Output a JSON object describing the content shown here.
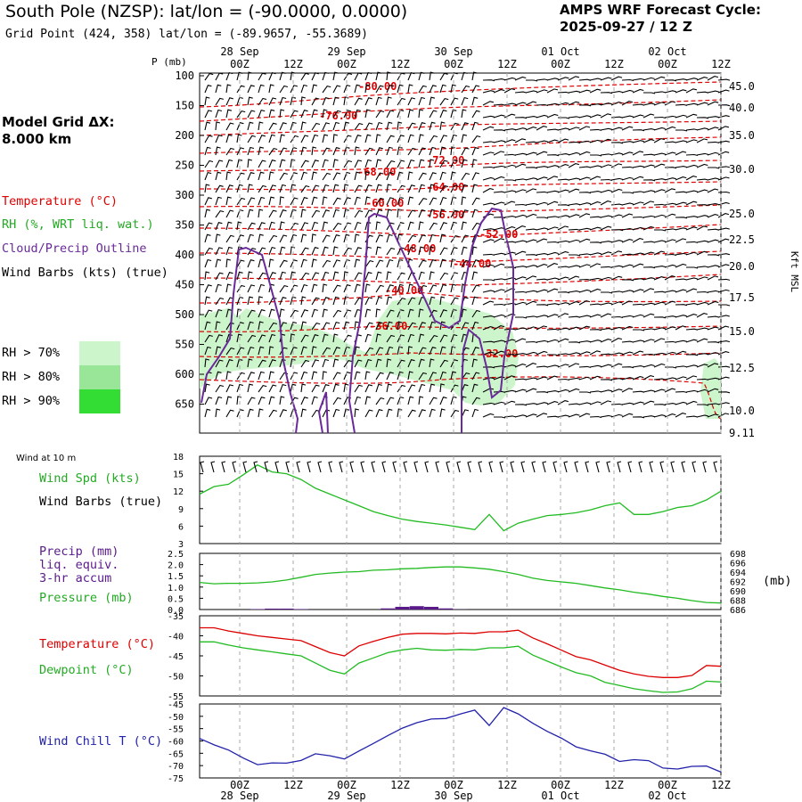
{
  "header": {
    "title": "South Pole (NZSP):  lat/lon = (-90.0000, 0.0000)",
    "subtitle": "Grid Point (424, 358) lat/lon = (-89.9657, -55.3689)",
    "cycle_line1": "AMPS WRF Forecast Cycle:",
    "cycle_line2": "2025-09-27 / 12  Z"
  },
  "model_grid": {
    "line1": "Model Grid ΔX:",
    "line2": " 8.000 km"
  },
  "time_axis": {
    "ticks": [
      "00Z",
      "12Z",
      "00Z",
      "12Z",
      "00Z",
      "12Z",
      "00Z",
      "12Z",
      "00Z",
      "12Z"
    ],
    "dates": [
      "28 Sep",
      "29 Sep",
      "30 Sep",
      "01 Oct",
      "02 Oct"
    ]
  },
  "legend": {
    "temperature": "Temperature (°C)",
    "rh": "RH (%, WRT liq. wat.)",
    "cloud": "Cloud/Precip Outline",
    "wind": "Wind Barbs (kts) (true)",
    "rh70": "RH > 70%",
    "rh80": "RH > 80%",
    "rh90": "RH > 90%",
    "colors": {
      "rh70": "#ccf5cc",
      "rh80": "#99e699",
      "rh90": "#33dd33",
      "temp": "#dd0000",
      "cloud": "#6a2a9a"
    }
  },
  "chart_data": [
    {
      "type": "heatmap",
      "name": "upper-air cross section",
      "ylabel_left": "P (mb)",
      "ylabel_right": "Kft MSL",
      "p_ticks": [
        "100",
        "150",
        "200",
        "250",
        "300",
        "350",
        "400",
        "450",
        "500",
        "550",
        "600",
        "650"
      ],
      "kft_ticks": [
        "45.0",
        "40.0",
        "35.0",
        "30.0",
        "25.0",
        "22.5",
        "20.0",
        "17.5",
        "15.0",
        "12.5",
        "10.0",
        "9.11"
      ],
      "temp_labels": [
        "-80.00",
        "-76.00",
        "-72.00",
        "-68.00",
        "-64.00",
        "-60.00",
        "-56.00",
        "-52.00",
        "-48.00",
        "-44.00",
        "-40.00",
        "-36.00",
        "-32.00"
      ]
    },
    {
      "type": "line",
      "name": "wind at 10 m",
      "panel_title": "Wind at 10 m",
      "ylabel1": "Wind Spd (kts)",
      "ylabel2": "Wind Barbs (true)",
      "ylim": [
        3,
        18
      ],
      "y_ticks": [
        "18",
        "15",
        "12",
        "9",
        "6",
        "3"
      ],
      "values": [
        11.5,
        12.8,
        13.2,
        14.8,
        16.5,
        15.3,
        15,
        14,
        12.5,
        11.5,
        10.5,
        9.5,
        8.5,
        7.8,
        7.2,
        6.8,
        6.5,
        6.2,
        5.8,
        5.4,
        8,
        5.2,
        6.5,
        7.2,
        7.8,
        8,
        8.3,
        8.8,
        9.5,
        10,
        8,
        8,
        8.5,
        9.2,
        9.5,
        10.5,
        12
      ],
      "color": "#22bb22"
    },
    {
      "type": "line",
      "name": "precip and pressure",
      "ylabel1": "Precip (mm)",
      "ylabel2": "liq. equiv.",
      "ylabel3": "3-hr accum",
      "ylabel4": "Pressure (mb)",
      "right_unit": "(mb)",
      "precip_ticks": [
        "2.5",
        "2.0",
        "1.5",
        "1.0",
        "0.5",
        "0.0"
      ],
      "pressure_ticks": [
        "698",
        "696",
        "694",
        "692",
        "690",
        "688",
        "686"
      ],
      "precip_ylim": [
        0,
        2.5
      ],
      "pressure_ylim": [
        686,
        698
      ],
      "pressure": [
        691.8,
        691.5,
        691.6,
        691.6,
        691.7,
        691.9,
        692.3,
        692.9,
        693.5,
        693.8,
        694.0,
        694.1,
        694.4,
        694.5,
        694.7,
        694.8,
        695.0,
        695.1,
        695.1,
        694.9,
        694.6,
        694.1,
        693.5,
        692.7,
        692.2,
        691.9,
        691.6,
        691.1,
        690.6,
        690.2,
        689.7,
        689.3,
        688.8,
        688.4,
        687.9,
        687.5,
        687.4
      ],
      "precip": [
        0,
        0,
        0,
        0,
        0.02,
        0.04,
        0.04,
        0.02,
        0,
        0,
        0,
        0,
        0,
        0.05,
        0.12,
        0.15,
        0.12,
        0.05,
        0.01,
        0,
        0,
        0,
        0,
        0,
        0,
        0,
        0,
        0,
        0,
        0,
        0,
        0,
        0,
        0,
        0,
        0,
        0
      ],
      "pressure_color": "#22bb22",
      "precip_color": "#5a1a8a"
    },
    {
      "type": "line",
      "name": "temperature and dewpoint",
      "ylim": [
        -55,
        -35
      ],
      "y_ticks": [
        "-35",
        "-40",
        "-45",
        "-50",
        "-55"
      ],
      "series": [
        {
          "name": "Temperature (°C)",
          "color": "#dd0000",
          "values": [
            -38,
            -38,
            -38.8,
            -39.4,
            -40,
            -40.4,
            -40.8,
            -41.2,
            -42.7,
            -44.2,
            -45,
            -42.5,
            -41.4,
            -40.4,
            -39.6,
            -39.4,
            -39.4,
            -39.5,
            -39.3,
            -39.4,
            -39,
            -39,
            -38.6,
            -40.5,
            -42,
            -43.6,
            -45.2,
            -46,
            -47.3,
            -48.6,
            -49.5,
            -50.1,
            -50.4,
            -50.4,
            -49.9,
            -47.4,
            -47.6
          ]
        },
        {
          "name": "Dewpoint (°C)",
          "color": "#22bb22",
          "values": [
            -41.5,
            -41.5,
            -42.3,
            -43,
            -43.5,
            -44,
            -44.5,
            -45,
            -46.8,
            -48.6,
            -49.5,
            -46.8,
            -45.5,
            -44.2,
            -43.5,
            -43.1,
            -43.5,
            -43.6,
            -43.4,
            -43.5,
            -43,
            -43,
            -42.6,
            -44.8,
            -46.3,
            -47.8,
            -49.2,
            -50,
            -51.6,
            -52.4,
            -53.2,
            -53.7,
            -54.1,
            -54,
            -53.2,
            -51.3,
            -51.5
          ]
        }
      ]
    },
    {
      "type": "line",
      "name": "wind chill",
      "ylabel": "Wind Chill T (°C)",
      "ylim": [
        -75,
        -45
      ],
      "y_ticks": [
        "-45",
        "-50",
        "-55",
        "-60",
        "-65",
        "-70",
        "-75"
      ],
      "values": [
        -59,
        -61.6,
        -63.7,
        -66.9,
        -69.6,
        -68.9,
        -69,
        -67.9,
        -65.2,
        -66,
        -67.3,
        -64.1,
        -61,
        -57.8,
        -54.8,
        -52.6,
        -51.1,
        -50.9,
        -49.1,
        -47.5,
        -53.7,
        -46.5,
        -49,
        -52.8,
        -56.1,
        -58.9,
        -62.4,
        -64,
        -65.4,
        -68.3,
        -67.6,
        -68,
        -71,
        -71.4,
        -70.3,
        -70.2,
        -72.6
      ],
      "color": "#2222aa"
    }
  ]
}
